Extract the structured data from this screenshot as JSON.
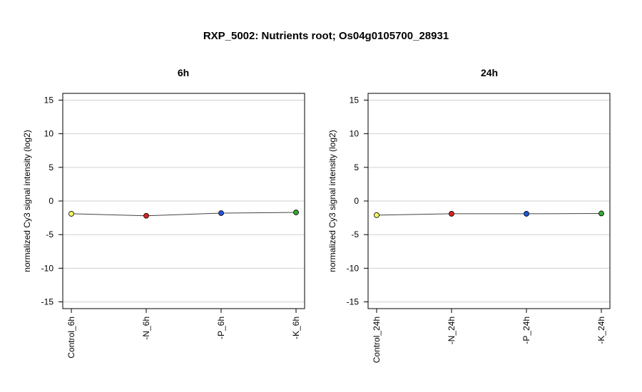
{
  "title": "RXP_5002: Nutrients root; Os04g0105700_28931",
  "colors": {
    "grid": "#d0d0d0",
    "line": "#444444",
    "frame": "#000000"
  },
  "chart_data": [
    {
      "type": "line",
      "title": "6h",
      "xlabel": "",
      "ylabel": "normalized Cy3 signal intensity (log2)",
      "ylim": [
        -16,
        16
      ],
      "yticks": [
        -15,
        -10,
        -5,
        0,
        5,
        10,
        15
      ],
      "grid": true,
      "categories": [
        "Control_6h",
        "-N_6h",
        "-P_6h",
        "-K_6h"
      ],
      "values": [
        -1.9,
        -2.2,
        -1.8,
        -1.7
      ],
      "point_colors": [
        "#ffff66",
        "#dd2222",
        "#2255dd",
        "#33aa33"
      ]
    },
    {
      "type": "line",
      "title": "24h",
      "xlabel": "",
      "ylabel": "normalized Cy3 signal intensity (log2)",
      "ylim": [
        -16,
        16
      ],
      "yticks": [
        -15,
        -10,
        -5,
        0,
        5,
        10,
        15
      ],
      "grid": true,
      "categories": [
        "Control_24h",
        "-N_24h",
        "-P_24h",
        "-K_24h"
      ],
      "values": [
        -2.1,
        -1.9,
        -1.9,
        -1.85
      ],
      "point_colors": [
        "#ffff66",
        "#dd2222",
        "#2255dd",
        "#33aa33"
      ]
    }
  ]
}
